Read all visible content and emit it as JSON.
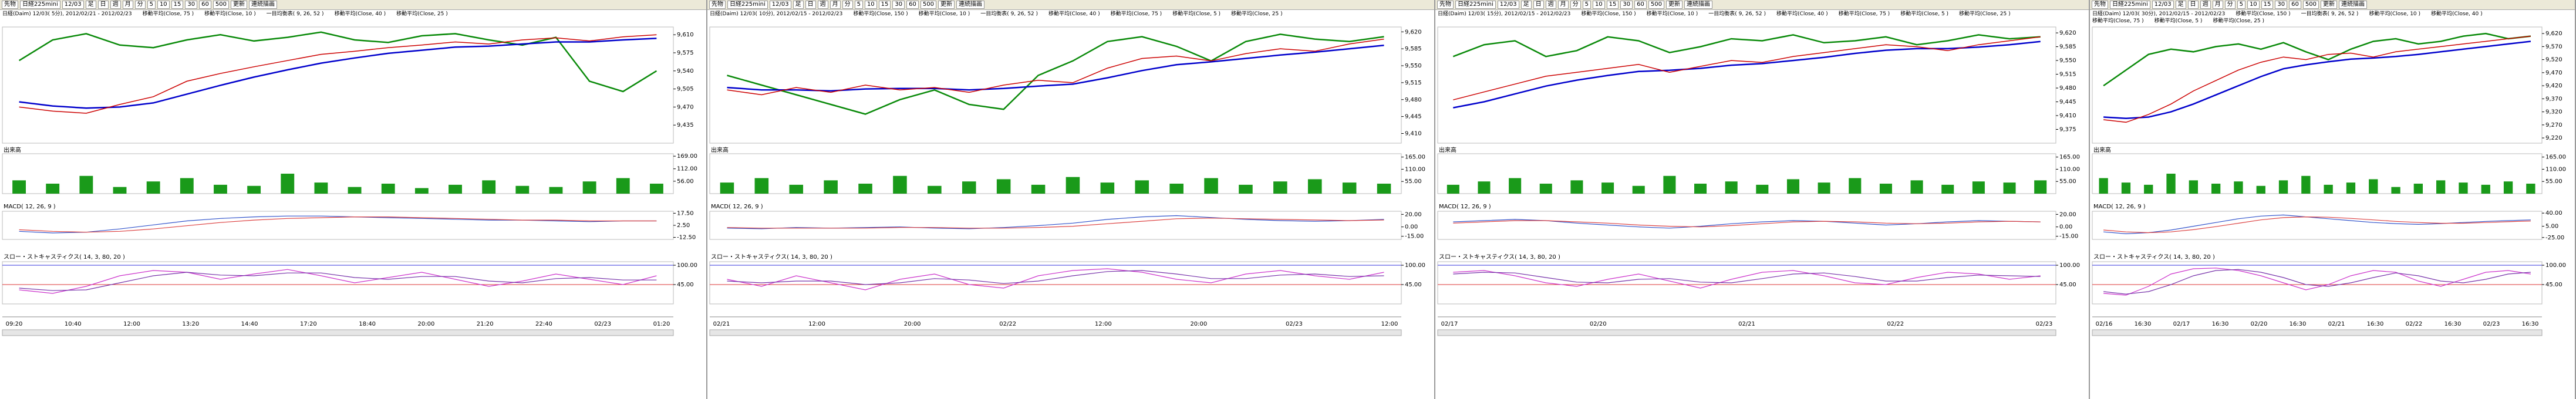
{
  "toolbar": [
    "先物",
    "日経225mini",
    "12/03",
    "足",
    "日",
    "週",
    "月",
    "分",
    "5",
    "10",
    "15",
    "30",
    "60",
    "500",
    "更新",
    "連続描画"
  ],
  "panels": [
    {
      "legend": [
        "日経(Daim) 12/03( 5分), 2012/02/21 - 2012/02/23",
        "移動平均(Close, 75 )",
        "移動平均(Close, 10 )",
        "一目均衡表( 9, 26, 52 )",
        "移動平均(Close, 40 )",
        "移動平均(Close, 25 )"
      ],
      "price": {
        "ylim": [
          9400,
          9625
        ],
        "yticks": [
          {
            "value": 9610,
            "label": "9,610"
          },
          {
            "value": 9575,
            "label": "9,575"
          },
          {
            "value": 9540,
            "label": "9,540"
          },
          {
            "value": 9505,
            "label": "9,505"
          },
          {
            "value": 9470,
            "label": "9,470"
          },
          {
            "value": 9435,
            "label": "9,435"
          }
        ],
        "close": [
          9470,
          9462,
          9458,
          9475,
          9490,
          9520,
          9535,
          9548,
          9560,
          9572,
          9578,
          9585,
          9590,
          9596,
          9592,
          9600,
          9604,
          9598,
          9606,
          9610
        ],
        "ma": [
          9480,
          9472,
          9468,
          9470,
          9478,
          9495,
          9512,
          9528,
          9542,
          9555,
          9565,
          9574,
          9580,
          9586,
          9588,
          9592,
          9596,
          9596,
          9600,
          9603
        ],
        "lagging": [
          9560,
          9600,
          9612,
          9590,
          9585,
          9600,
          9610,
          9598,
          9605,
          9615,
          9600,
          9595,
          9608,
          9612,
          9600,
          9590,
          9605,
          9520,
          9500,
          9540
        ]
      },
      "volume": {
        "label": "出来高",
        "ylim": [
          0,
          180
        ],
        "yticks": [
          {
            "value": 169,
            "label": "169.00"
          },
          {
            "value": 112,
            "label": "112.00"
          },
          {
            "value": 56,
            "label": "56.00"
          }
        ],
        "values": [
          60,
          45,
          80,
          30,
          55,
          70,
          40,
          35,
          90,
          50,
          30,
          45,
          25,
          40,
          60,
          35,
          30,
          55,
          70,
          45
        ]
      },
      "macd": {
        "label": "MACD( 12, 26, 9 )",
        "ylim": [
          -15,
          20
        ],
        "yticks": [
          {
            "value": 17.5,
            "label": "17.50"
          },
          {
            "value": 2.5,
            "label": "2.50"
          },
          {
            "value": -12.5,
            "label": "-12.50"
          }
        ],
        "macd": [
          -5,
          -7,
          -6,
          -2,
          3,
          8,
          11,
          13,
          14,
          14,
          13,
          12,
          11,
          10,
          9,
          9,
          8,
          7,
          8,
          8
        ],
        "signal": [
          -3,
          -5,
          -6,
          -5,
          -2,
          2,
          6,
          9,
          11,
          12,
          13,
          13,
          12,
          11,
          10,
          9,
          9,
          8,
          8,
          8
        ]
      },
      "stoch": {
        "label": "スロー・ストキャスティクス( 14, 3, 80, 20 )",
        "ylim": [
          -10,
          110
        ],
        "yticks": [
          {
            "value": 100,
            "label": "100.00"
          },
          {
            "value": 45,
            "label": "45.00"
          }
        ],
        "k": [
          30,
          20,
          40,
          70,
          85,
          80,
          60,
          75,
          88,
          70,
          50,
          65,
          80,
          60,
          40,
          55,
          75,
          60,
          45,
          70
        ],
        "d": [
          35,
          28,
          30,
          50,
          70,
          80,
          72,
          70,
          78,
          78,
          65,
          60,
          68,
          68,
          55,
          50,
          62,
          65,
          58,
          58
        ]
      },
      "time_labels": [
        "09:20",
        "10:40",
        "12:00",
        "13:20",
        "14:40",
        "17:20",
        "18:40",
        "20:00",
        "21:20",
        "22:40",
        "02/23",
        "01:20"
      ]
    },
    {
      "legend": [
        "日経(Daim) 12/03( 10分), 2012/02/15 - 2012/02/23",
        "移動平均(Close, 150 )",
        "移動平均(Close, 10 )",
        "一目均衡表( 9, 26, 52 )",
        "移動平均(Close, 40 )",
        "移動平均(Close, 75 )",
        "移動平均(Close, 5 )",
        "移動平均(Close, 25 )"
      ],
      "price": {
        "ylim": [
          9390,
          9630
        ],
        "yticks": [
          {
            "value": 9620,
            "label": "9,620"
          },
          {
            "value": 9585,
            "label": "9,585"
          },
          {
            "value": 9550,
            "label": "9,550"
          },
          {
            "value": 9515,
            "label": "9,515"
          },
          {
            "value": 9480,
            "label": "9,480"
          },
          {
            "value": 9445,
            "label": "9,445"
          },
          {
            "value": 9410,
            "label": "9,410"
          }
        ],
        "close": [
          9500,
          9490,
          9505,
          9495,
          9510,
          9500,
          9505,
          9495,
          9510,
          9520,
          9515,
          9545,
          9565,
          9570,
          9560,
          9575,
          9585,
          9580,
          9595,
          9605
        ],
        "ma": [
          9505,
          9500,
          9500,
          9498,
          9502,
          9503,
          9503,
          9500,
          9503,
          9508,
          9512,
          9525,
          9540,
          9552,
          9558,
          9565,
          9572,
          9578,
          9585,
          9592
        ],
        "lagging": [
          9530,
          9510,
          9490,
          9470,
          9450,
          9480,
          9500,
          9470,
          9460,
          9530,
          9560,
          9600,
          9610,
          9590,
          9560,
          9600,
          9615,
          9605,
          9600,
          9610
        ]
      },
      "volume": {
        "label": "出来高",
        "ylim": [
          0,
          180
        ],
        "yticks": [
          {
            "value": 165,
            "label": "165.00"
          },
          {
            "value": 110,
            "label": "110.00"
          },
          {
            "value": 55,
            "label": "55.00"
          }
        ],
        "values": [
          50,
          70,
          40,
          60,
          45,
          80,
          35,
          55,
          65,
          40,
          75,
          50,
          60,
          45,
          70,
          40,
          55,
          65,
          50,
          45
        ]
      },
      "macd": {
        "label": "MACD( 12, 26, 9 )",
        "ylim": [
          -20,
          25
        ],
        "yticks": [
          {
            "value": 20,
            "label": "20.00"
          },
          {
            "value": 0,
            "label": "0.00"
          },
          {
            "value": -15,
            "label": "-15.00"
          }
        ],
        "macd": [
          -2,
          -3,
          -1,
          -2,
          -1,
          0,
          -2,
          -3,
          -1,
          2,
          6,
          12,
          16,
          18,
          15,
          12,
          10,
          9,
          10,
          12
        ],
        "signal": [
          -1,
          -2,
          -2,
          -2,
          -2,
          -1,
          -1,
          -2,
          -2,
          -1,
          1,
          5,
          9,
          13,
          14,
          13,
          12,
          11,
          10,
          11
        ]
      },
      "stoch": {
        "label": "スロー・ストキャスティクス( 14, 3, 80, 20 )",
        "ylim": [
          -10,
          110
        ],
        "yticks": [
          {
            "value": 100,
            "label": "100.00"
          },
          {
            "value": 45,
            "label": "45.00"
          }
        ],
        "k": [
          60,
          40,
          70,
          50,
          30,
          60,
          75,
          45,
          35,
          70,
          85,
          90,
          80,
          60,
          50,
          75,
          85,
          70,
          60,
          80
        ],
        "d": [
          55,
          50,
          55,
          55,
          45,
          50,
          62,
          58,
          48,
          55,
          70,
          82,
          85,
          75,
          62,
          62,
          72,
          75,
          68,
          70
        ]
      },
      "time_labels": [
        "02/21",
        "12:00",
        "20:00",
        "02/22",
        "12:00",
        "20:00",
        "02/23",
        "12:00"
      ]
    },
    {
      "legend": [
        "日経(Daim) 12/03( 15分), 2012/02/15 - 2012/02/23",
        "移動平均(Close, 150 )",
        "移動平均(Close, 10 )",
        "一目均衡表( 9, 26, 52 )",
        "移動平均(Close, 40 )",
        "移動平均(Close, 75 )",
        "移動平均(Close, 5 )",
        "移動平均(Close, 25 )"
      ],
      "price": {
        "ylim": [
          9340,
          9635
        ],
        "yticks": [
          {
            "value": 9620,
            "label": "9,620"
          },
          {
            "value": 9585,
            "label": "9,585"
          },
          {
            "value": 9550,
            "label": "9,550"
          },
          {
            "value": 9515,
            "label": "9,515"
          },
          {
            "value": 9480,
            "label": "9,480"
          },
          {
            "value": 9445,
            "label": "9,445"
          },
          {
            "value": 9410,
            "label": "9,410"
          },
          {
            "value": 9375,
            "label": "9,375"
          }
        ],
        "close": [
          9450,
          9470,
          9490,
          9510,
          9520,
          9530,
          9540,
          9520,
          9535,
          9550,
          9545,
          9560,
          9570,
          9580,
          9590,
          9585,
          9575,
          9590,
          9600,
          9610
        ],
        "ma": [
          9430,
          9445,
          9465,
          9485,
          9500,
          9512,
          9522,
          9525,
          9530,
          9538,
          9542,
          9550,
          9558,
          9568,
          9576,
          9580,
          9580,
          9584,
          9590,
          9598
        ],
        "lagging": [
          9560,
          9590,
          9600,
          9560,
          9575,
          9610,
          9600,
          9570,
          9585,
          9605,
          9600,
          9615,
          9595,
          9600,
          9610,
          9590,
          9600,
          9615,
          9605,
          9610
        ]
      },
      "volume": {
        "label": "出来高",
        "ylim": [
          0,
          180
        ],
        "yticks": [
          {
            "value": 165,
            "label": "165.00"
          },
          {
            "value": 110,
            "label": "110.00"
          },
          {
            "value": 55,
            "label": "55.00"
          }
        ],
        "values": [
          40,
          55,
          70,
          45,
          60,
          50,
          35,
          80,
          45,
          55,
          40,
          65,
          50,
          70,
          45,
          60,
          40,
          55,
          50,
          60
        ]
      },
      "macd": {
        "label": "MACD( 12, 26, 9 )",
        "ylim": [
          -20,
          25
        ],
        "yticks": [
          {
            "value": 20,
            "label": "20.00"
          },
          {
            "value": 0,
            "label": "0.00"
          },
          {
            "value": -15,
            "label": "-15.00"
          }
        ],
        "macd": [
          8,
          10,
          12,
          10,
          6,
          3,
          0,
          -2,
          1,
          5,
          8,
          10,
          9,
          6,
          3,
          5,
          8,
          10,
          9,
          8
        ],
        "signal": [
          6,
          8,
          10,
          10,
          8,
          6,
          3,
          1,
          0,
          2,
          5,
          8,
          9,
          8,
          6,
          5,
          6,
          8,
          9,
          8
        ]
      },
      "stoch": {
        "label": "スロー・ストキャスティクス( 14, 3, 80, 20 )",
        "ylim": [
          -10,
          110
        ],
        "yticks": [
          {
            "value": 100,
            "label": "100.00"
          },
          {
            "value": 45,
            "label": "45.00"
          }
        ],
        "k": [
          80,
          85,
          70,
          50,
          40,
          60,
          75,
          55,
          35,
          60,
          80,
          85,
          70,
          50,
          45,
          65,
          80,
          75,
          60,
          70
        ],
        "d": [
          75,
          80,
          78,
          65,
          52,
          50,
          60,
          62,
          52,
          50,
          62,
          75,
          78,
          68,
          55,
          55,
          65,
          72,
          70,
          68
        ]
      },
      "time_labels": [
        "02/17",
        "02/20",
        "02/21",
        "02/22",
        "02/23"
      ]
    },
    {
      "legend": [
        "日経(Daim) 12/03( 30分), 2012/02/15 - 2012/02/23",
        "移動平均(Close, 150 )",
        "一目均衡表( 9, 26, 52 )",
        "移動平均(Close, 10 )",
        "移動平均(Close, 40 )",
        "移動平均(Close, 75 )",
        "移動平均(Close, 5 )",
        "移動平均(Close, 25 )"
      ],
      "price": {
        "ylim": [
          9200,
          9645
        ],
        "yticks": [
          {
            "value": 9620,
            "label": "9,620"
          },
          {
            "value": 9570,
            "label": "9,570"
          },
          {
            "value": 9520,
            "label": "9,520"
          },
          {
            "value": 9470,
            "label": "9,470"
          },
          {
            "value": 9420,
            "label": "9,420"
          },
          {
            "value": 9370,
            "label": "9,370"
          },
          {
            "value": 9320,
            "label": "9,320"
          },
          {
            "value": 9270,
            "label": "9,270"
          },
          {
            "value": 9220,
            "label": "9,220"
          }
        ],
        "close": [
          9290,
          9280,
          9310,
          9350,
          9400,
          9440,
          9480,
          9510,
          9530,
          9520,
          9540,
          9545,
          9530,
          9550,
          9560,
          9570,
          9580,
          9590,
          9600,
          9610
        ],
        "ma": [
          9300,
          9295,
          9300,
          9320,
          9350,
          9385,
          9420,
          9455,
          9485,
          9500,
          9512,
          9522,
          9526,
          9532,
          9540,
          9550,
          9560,
          9570,
          9580,
          9590
        ],
        "lagging": [
          9420,
          9480,
          9540,
          9560,
          9550,
          9570,
          9580,
          9560,
          9585,
          9550,
          9520,
          9560,
          9590,
          9600,
          9580,
          9590,
          9610,
          9620,
          9600,
          9610
        ]
      },
      "volume": {
        "label": "出来高",
        "ylim": [
          0,
          180
        ],
        "yticks": [
          {
            "value": 165,
            "label": "165.00"
          },
          {
            "value": 110,
            "label": "110.00"
          },
          {
            "value": 55,
            "label": "55.00"
          }
        ],
        "values": [
          70,
          50,
          40,
          90,
          60,
          45,
          55,
          35,
          60,
          80,
          40,
          50,
          65,
          30,
          45,
          60,
          50,
          40,
          55,
          45
        ]
      },
      "macd": {
        "label": "MACD( 12, 26, 9 )",
        "ylim": [
          -30,
          45
        ],
        "yticks": [
          {
            "value": 40,
            "label": "40.00"
          },
          {
            "value": 5,
            "label": "5.00"
          },
          {
            "value": -25,
            "label": "-25.00"
          }
        ],
        "macd": [
          -10,
          -15,
          -12,
          -5,
          5,
          15,
          25,
          32,
          35,
          30,
          25,
          20,
          15,
          12,
          10,
          12,
          15,
          18,
          20,
          22
        ],
        "signal": [
          -5,
          -10,
          -12,
          -10,
          -4,
          4,
          13,
          22,
          28,
          30,
          29,
          26,
          22,
          18,
          15,
          13,
          13,
          15,
          17,
          19
        ]
      },
      "stoch": {
        "label": "スロー・ストキャスティクス( 14, 3, 80, 20 )",
        "ylim": [
          -10,
          110
        ],
        "yticks": [
          {
            "value": 100,
            "label": "100.00"
          },
          {
            "value": 45,
            "label": "45.00"
          }
        ],
        "k": [
          20,
          15,
          40,
          75,
          90,
          92,
          85,
          70,
          50,
          30,
          45,
          70,
          85,
          80,
          55,
          40,
          60,
          80,
          85,
          75
        ],
        "d": [
          25,
          18,
          25,
          45,
          70,
          85,
          88,
          80,
          65,
          45,
          40,
          50,
          65,
          78,
          70,
          55,
          50,
          60,
          75,
          80
        ]
      },
      "time_labels": [
        "02/16",
        "16:30",
        "02/17",
        "16:30",
        "02/20",
        "16:30",
        "02/21",
        "16:30",
        "02/22",
        "16:30",
        "02/23",
        "16:30"
      ]
    }
  ]
}
